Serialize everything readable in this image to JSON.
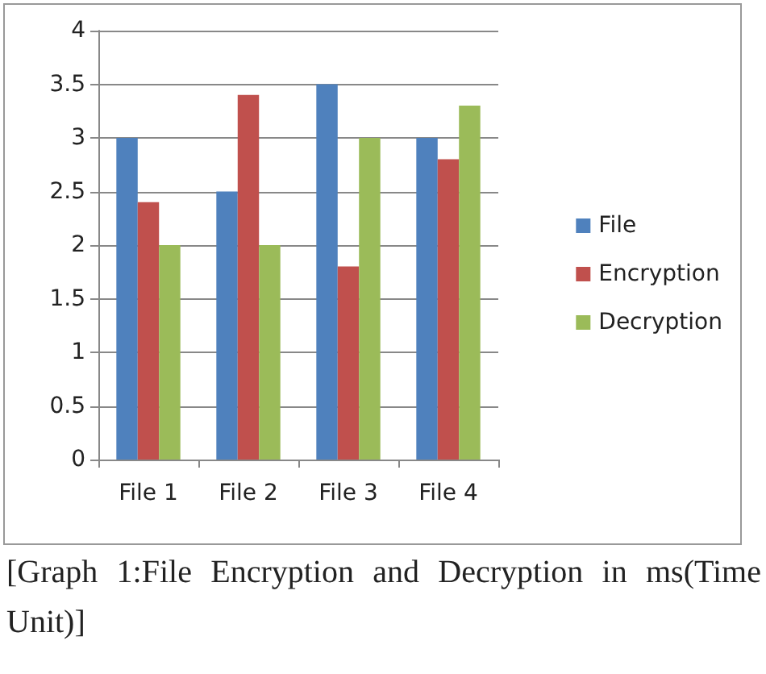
{
  "chart_data": {
    "type": "bar",
    "categories": [
      "File 1",
      "File 2",
      "File 3",
      "File 4"
    ],
    "series": [
      {
        "name": "File",
        "color": "#4f81bd",
        "values": [
          3,
          2.5,
          3.5,
          3
        ]
      },
      {
        "name": "Encryption",
        "color": "#c0504d",
        "values": [
          2.4,
          3.4,
          1.8,
          2.8
        ]
      },
      {
        "name": "Decryption",
        "color": "#9bbb59",
        "values": [
          2,
          2,
          3,
          3.3
        ]
      }
    ],
    "ylim": [
      0,
      4
    ],
    "yticks": [
      0,
      0.5,
      1,
      1.5,
      2,
      2.5,
      3,
      3.5,
      4
    ],
    "grid": "y",
    "legend": "right",
    "annotations": [
      "[Graph 1:File Encryption and Decryption in ms(Time Unit)]"
    ]
  }
}
